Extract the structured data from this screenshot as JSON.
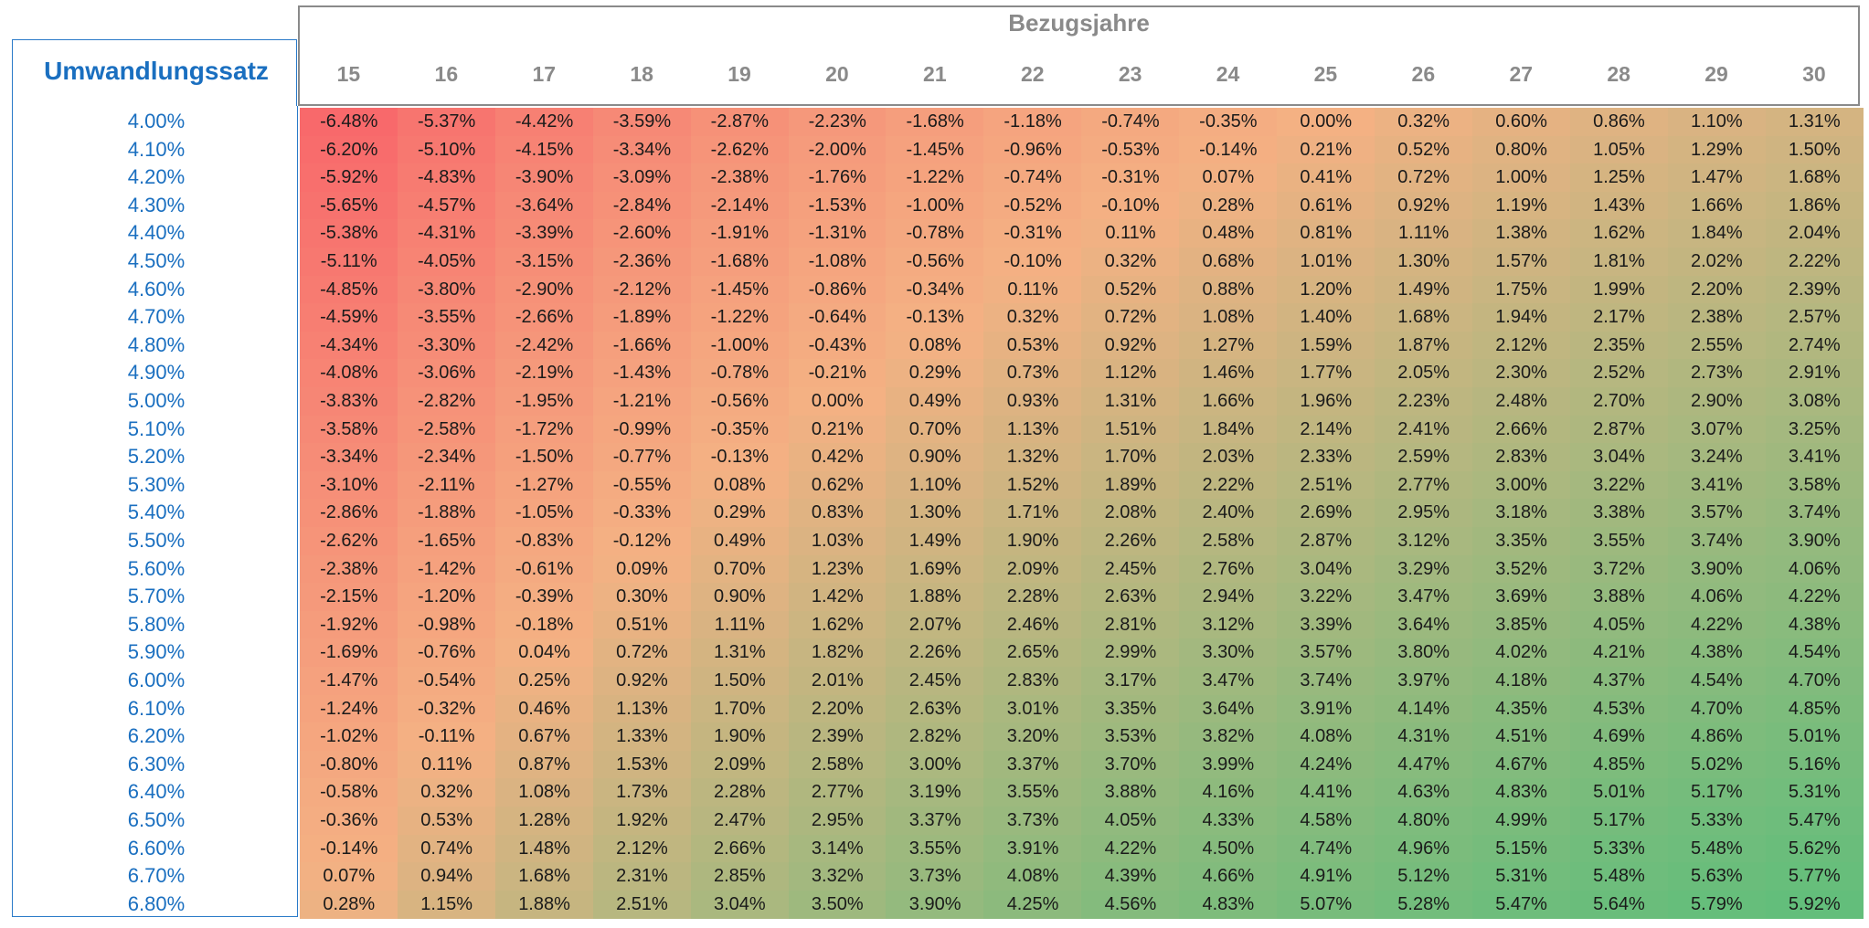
{
  "header": {
    "row_header": "Umwandlungssatz",
    "col_header": "Bezugsjahre"
  },
  "chart_data": {
    "type": "heatmap",
    "x": [
      "15",
      "16",
      "17",
      "18",
      "19",
      "20",
      "21",
      "22",
      "23",
      "24",
      "25",
      "26",
      "27",
      "28",
      "29",
      "30"
    ],
    "y": [
      "4.00%",
      "4.10%",
      "4.20%",
      "4.30%",
      "4.40%",
      "4.50%",
      "4.60%",
      "4.70%",
      "4.80%",
      "4.90%",
      "5.00%",
      "5.10%",
      "5.20%",
      "5.30%",
      "5.40%",
      "5.50%",
      "5.60%",
      "5.70%",
      "5.80%",
      "5.90%",
      "6.00%",
      "6.10%",
      "6.20%",
      "6.30%",
      "6.40%",
      "6.50%",
      "6.60%",
      "6.70%",
      "6.80%"
    ],
    "values": [
      [
        "-6.48%",
        "-5.37%",
        "-4.42%",
        "-3.59%",
        "-2.87%",
        "-2.23%",
        "-1.68%",
        "-1.18%",
        "-0.74%",
        "-0.35%",
        "0.00%",
        "0.32%",
        "0.60%",
        "0.86%",
        "1.10%",
        "1.31%"
      ],
      [
        "-6.20%",
        "-5.10%",
        "-4.15%",
        "-3.34%",
        "-2.62%",
        "-2.00%",
        "-1.45%",
        "-0.96%",
        "-0.53%",
        "-0.14%",
        "0.21%",
        "0.52%",
        "0.80%",
        "1.05%",
        "1.29%",
        "1.50%"
      ],
      [
        "-5.92%",
        "-4.83%",
        "-3.90%",
        "-3.09%",
        "-2.38%",
        "-1.76%",
        "-1.22%",
        "-0.74%",
        "-0.31%",
        "0.07%",
        "0.41%",
        "0.72%",
        "1.00%",
        "1.25%",
        "1.47%",
        "1.68%"
      ],
      [
        "-5.65%",
        "-4.57%",
        "-3.64%",
        "-2.84%",
        "-2.14%",
        "-1.53%",
        "-1.00%",
        "-0.52%",
        "-0.10%",
        "0.28%",
        "0.61%",
        "0.92%",
        "1.19%",
        "1.43%",
        "1.66%",
        "1.86%"
      ],
      [
        "-5.38%",
        "-4.31%",
        "-3.39%",
        "-2.60%",
        "-1.91%",
        "-1.31%",
        "-0.78%",
        "-0.31%",
        "0.11%",
        "0.48%",
        "0.81%",
        "1.11%",
        "1.38%",
        "1.62%",
        "1.84%",
        "2.04%"
      ],
      [
        "-5.11%",
        "-4.05%",
        "-3.15%",
        "-2.36%",
        "-1.68%",
        "-1.08%",
        "-0.56%",
        "-0.10%",
        "0.32%",
        "0.68%",
        "1.01%",
        "1.30%",
        "1.57%",
        "1.81%",
        "2.02%",
        "2.22%"
      ],
      [
        "-4.85%",
        "-3.80%",
        "-2.90%",
        "-2.12%",
        "-1.45%",
        "-0.86%",
        "-0.34%",
        "0.11%",
        "0.52%",
        "0.88%",
        "1.20%",
        "1.49%",
        "1.75%",
        "1.99%",
        "2.20%",
        "2.39%"
      ],
      [
        "-4.59%",
        "-3.55%",
        "-2.66%",
        "-1.89%",
        "-1.22%",
        "-0.64%",
        "-0.13%",
        "0.32%",
        "0.72%",
        "1.08%",
        "1.40%",
        "1.68%",
        "1.94%",
        "2.17%",
        "2.38%",
        "2.57%"
      ],
      [
        "-4.34%",
        "-3.30%",
        "-2.42%",
        "-1.66%",
        "-1.00%",
        "-0.43%",
        "0.08%",
        "0.53%",
        "0.92%",
        "1.27%",
        "1.59%",
        "1.87%",
        "2.12%",
        "2.35%",
        "2.55%",
        "2.74%"
      ],
      [
        "-4.08%",
        "-3.06%",
        "-2.19%",
        "-1.43%",
        "-0.78%",
        "-0.21%",
        "0.29%",
        "0.73%",
        "1.12%",
        "1.46%",
        "1.77%",
        "2.05%",
        "2.30%",
        "2.52%",
        "2.73%",
        "2.91%"
      ],
      [
        "-3.83%",
        "-2.82%",
        "-1.95%",
        "-1.21%",
        "-0.56%",
        "0.00%",
        "0.49%",
        "0.93%",
        "1.31%",
        "1.66%",
        "1.96%",
        "2.23%",
        "2.48%",
        "2.70%",
        "2.90%",
        "3.08%"
      ],
      [
        "-3.58%",
        "-2.58%",
        "-1.72%",
        "-0.99%",
        "-0.35%",
        "0.21%",
        "0.70%",
        "1.13%",
        "1.51%",
        "1.84%",
        "2.14%",
        "2.41%",
        "2.66%",
        "2.87%",
        "3.07%",
        "3.25%"
      ],
      [
        "-3.34%",
        "-2.34%",
        "-1.50%",
        "-0.77%",
        "-0.13%",
        "0.42%",
        "0.90%",
        "1.32%",
        "1.70%",
        "2.03%",
        "2.33%",
        "2.59%",
        "2.83%",
        "3.04%",
        "3.24%",
        "3.41%"
      ],
      [
        "-3.10%",
        "-2.11%",
        "-1.27%",
        "-0.55%",
        "0.08%",
        "0.62%",
        "1.10%",
        "1.52%",
        "1.89%",
        "2.22%",
        "2.51%",
        "2.77%",
        "3.00%",
        "3.22%",
        "3.41%",
        "3.58%"
      ],
      [
        "-2.86%",
        "-1.88%",
        "-1.05%",
        "-0.33%",
        "0.29%",
        "0.83%",
        "1.30%",
        "1.71%",
        "2.08%",
        "2.40%",
        "2.69%",
        "2.95%",
        "3.18%",
        "3.38%",
        "3.57%",
        "3.74%"
      ],
      [
        "-2.62%",
        "-1.65%",
        "-0.83%",
        "-0.12%",
        "0.49%",
        "1.03%",
        "1.49%",
        "1.90%",
        "2.26%",
        "2.58%",
        "2.87%",
        "3.12%",
        "3.35%",
        "3.55%",
        "3.74%",
        "3.90%"
      ],
      [
        "-2.38%",
        "-1.42%",
        "-0.61%",
        "0.09%",
        "0.70%",
        "1.23%",
        "1.69%",
        "2.09%",
        "2.45%",
        "2.76%",
        "3.04%",
        "3.29%",
        "3.52%",
        "3.72%",
        "3.90%",
        "4.06%"
      ],
      [
        "-2.15%",
        "-1.20%",
        "-0.39%",
        "0.30%",
        "0.90%",
        "1.42%",
        "1.88%",
        "2.28%",
        "2.63%",
        "2.94%",
        "3.22%",
        "3.47%",
        "3.69%",
        "3.88%",
        "4.06%",
        "4.22%"
      ],
      [
        "-1.92%",
        "-0.98%",
        "-0.18%",
        "0.51%",
        "1.11%",
        "1.62%",
        "2.07%",
        "2.46%",
        "2.81%",
        "3.12%",
        "3.39%",
        "3.64%",
        "3.85%",
        "4.05%",
        "4.22%",
        "4.38%"
      ],
      [
        "-1.69%",
        "-0.76%",
        "0.04%",
        "0.72%",
        "1.31%",
        "1.82%",
        "2.26%",
        "2.65%",
        "2.99%",
        "3.30%",
        "3.57%",
        "3.80%",
        "4.02%",
        "4.21%",
        "4.38%",
        "4.54%"
      ],
      [
        "-1.47%",
        "-0.54%",
        "0.25%",
        "0.92%",
        "1.50%",
        "2.01%",
        "2.45%",
        "2.83%",
        "3.17%",
        "3.47%",
        "3.74%",
        "3.97%",
        "4.18%",
        "4.37%",
        "4.54%",
        "4.70%"
      ],
      [
        "-1.24%",
        "-0.32%",
        "0.46%",
        "1.13%",
        "1.70%",
        "2.20%",
        "2.63%",
        "3.01%",
        "3.35%",
        "3.64%",
        "3.91%",
        "4.14%",
        "4.35%",
        "4.53%",
        "4.70%",
        "4.85%"
      ],
      [
        "-1.02%",
        "-0.11%",
        "0.67%",
        "1.33%",
        "1.90%",
        "2.39%",
        "2.82%",
        "3.20%",
        "3.53%",
        "3.82%",
        "4.08%",
        "4.31%",
        "4.51%",
        "4.69%",
        "4.86%",
        "5.01%"
      ],
      [
        "-0.80%",
        "0.11%",
        "0.87%",
        "1.53%",
        "2.09%",
        "2.58%",
        "3.00%",
        "3.37%",
        "3.70%",
        "3.99%",
        "4.24%",
        "4.47%",
        "4.67%",
        "4.85%",
        "5.02%",
        "5.16%"
      ],
      [
        "-0.58%",
        "0.32%",
        "1.08%",
        "1.73%",
        "2.28%",
        "2.77%",
        "3.19%",
        "3.55%",
        "3.88%",
        "4.16%",
        "4.41%",
        "4.63%",
        "4.83%",
        "5.01%",
        "5.17%",
        "5.31%"
      ],
      [
        "-0.36%",
        "0.53%",
        "1.28%",
        "1.92%",
        "2.47%",
        "2.95%",
        "3.37%",
        "3.73%",
        "4.05%",
        "4.33%",
        "4.58%",
        "4.80%",
        "4.99%",
        "5.17%",
        "5.33%",
        "5.47%"
      ],
      [
        "-0.14%",
        "0.74%",
        "1.48%",
        "2.12%",
        "2.66%",
        "3.14%",
        "3.55%",
        "3.91%",
        "4.22%",
        "4.50%",
        "4.74%",
        "4.96%",
        "5.15%",
        "5.33%",
        "5.48%",
        "5.62%"
      ],
      [
        "0.07%",
        "0.94%",
        "1.68%",
        "2.31%",
        "2.85%",
        "3.32%",
        "3.73%",
        "4.08%",
        "4.39%",
        "4.66%",
        "4.91%",
        "5.12%",
        "5.31%",
        "5.48%",
        "5.63%",
        "5.77%"
      ],
      [
        "0.28%",
        "1.15%",
        "1.88%",
        "2.51%",
        "3.04%",
        "3.50%",
        "3.90%",
        "4.25%",
        "4.56%",
        "4.83%",
        "5.07%",
        "5.28%",
        "5.47%",
        "5.64%",
        "5.79%",
        "5.92%"
      ]
    ],
    "color_scale": {
      "low": "#f8696b",
      "mid": "#f4b183",
      "high": "#63be7b",
      "min": -6.48,
      "mid_value": 0,
      "max": 5.92
    }
  }
}
